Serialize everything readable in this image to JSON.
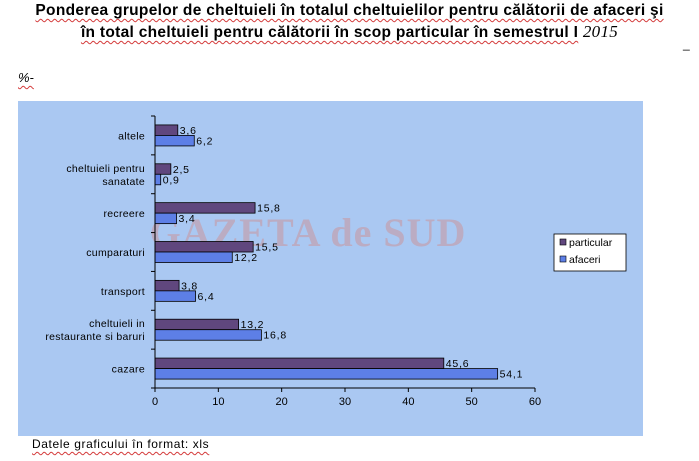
{
  "title": {
    "line1": "Ponderea grupelor de cheltuieli în totalul cheltuielilor pentru călătorii de afaceri şi",
    "line2": "în total cheltuieli pentru călătorii în scop particular în semestrul I",
    "year": "2015"
  },
  "unit_label": "%-",
  "watermark": "GAZETA de SUD",
  "footer": "Datele graficului în format: xls",
  "chart_data": {
    "type": "bar",
    "orientation": "horizontal",
    "categories": [
      "altele",
      "cheltuieli pentru\nsanatate",
      "recreere",
      "cumparaturi",
      "transport",
      "cheltuieli in\nrestaurante si baruri",
      "cazare"
    ],
    "series": [
      {
        "name": "particular",
        "color": "#60477e",
        "values": [
          3.6,
          2.5,
          15.8,
          15.5,
          3.8,
          13.2,
          45.6
        ],
        "labels": [
          "3,6",
          "2,5",
          "15,8",
          "15,5",
          "3,8",
          "13,2",
          "45,6"
        ]
      },
      {
        "name": "afaceri",
        "color": "#5d7fe6",
        "values": [
          6.2,
          0.9,
          3.4,
          12.2,
          6.4,
          16.8,
          54.1
        ],
        "labels": [
          "6,2",
          "0,9",
          "3,4",
          "12,2",
          "6,4",
          "16,8",
          "54,1"
        ]
      }
    ],
    "xlim": [
      0,
      60
    ],
    "xticks": [
      0,
      10,
      20,
      30,
      40,
      50,
      60
    ],
    "legend_position": "right",
    "grid": false
  }
}
